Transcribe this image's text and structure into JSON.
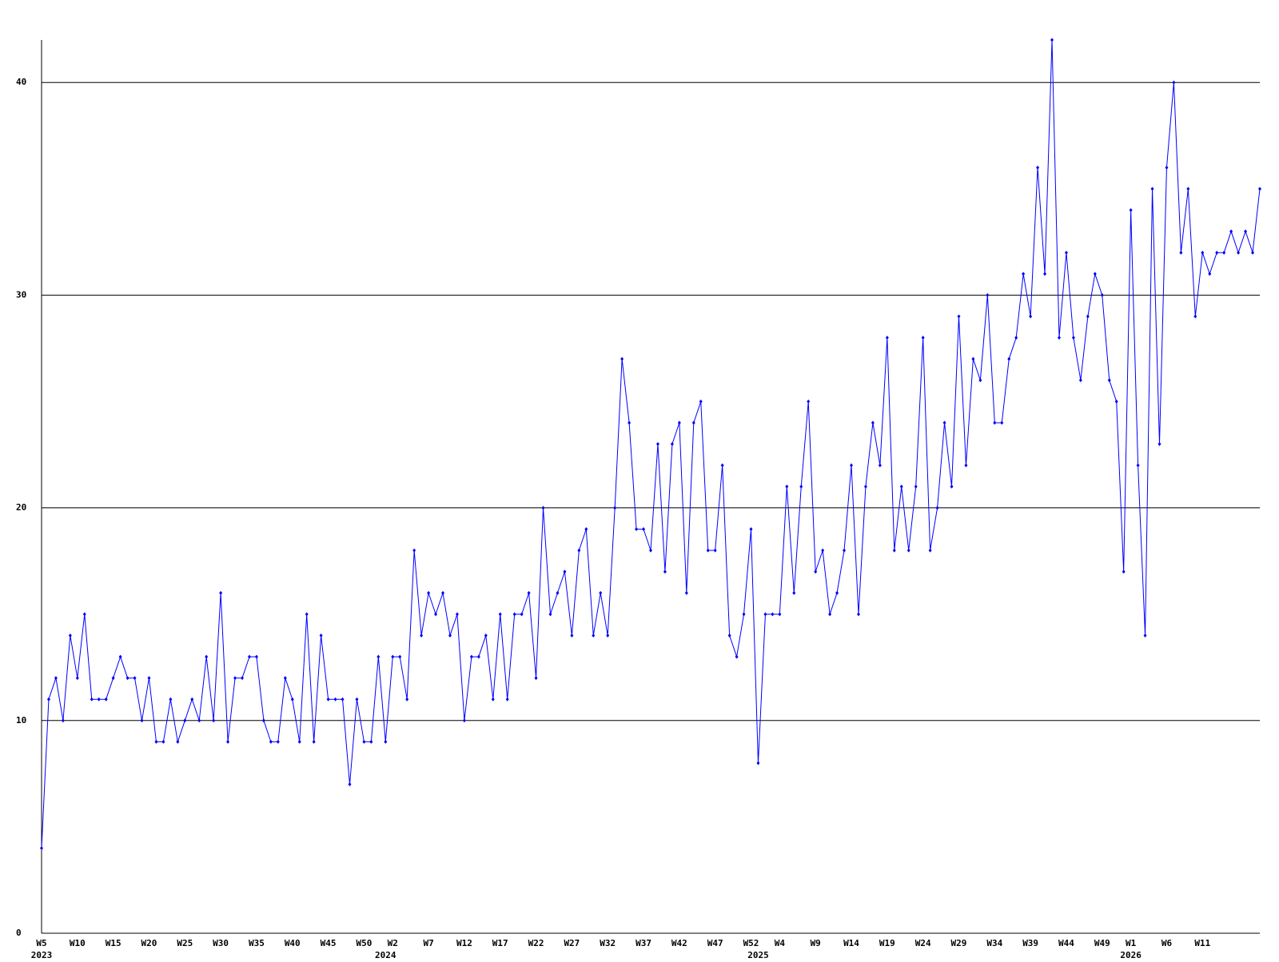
{
  "chart_data": {
    "type": "line",
    "color": "#0000ff",
    "grid": true,
    "ylim": [
      0,
      42
    ],
    "yticks": [
      0,
      10,
      20,
      30,
      40
    ],
    "categories": [
      "W5",
      null,
      null,
      null,
      null,
      "W10",
      null,
      null,
      null,
      null,
      "W15",
      null,
      null,
      null,
      null,
      "W20",
      null,
      null,
      null,
      null,
      "W25",
      null,
      null,
      null,
      null,
      "W30",
      null,
      null,
      null,
      null,
      "W35",
      null,
      null,
      null,
      null,
      "W40",
      null,
      null,
      null,
      null,
      "W45",
      null,
      null,
      null,
      null,
      "W50",
      null,
      null,
      null,
      "W2",
      null,
      null,
      null,
      null,
      "W7",
      null,
      null,
      null,
      null,
      "W12",
      null,
      null,
      null,
      null,
      "W17",
      null,
      null,
      null,
      null,
      "W22",
      null,
      null,
      null,
      null,
      "W27",
      null,
      null,
      null,
      null,
      "W32",
      null,
      null,
      null,
      null,
      "W37",
      null,
      null,
      null,
      null,
      "W42",
      null,
      null,
      null,
      null,
      "W47",
      null,
      null,
      null,
      null,
      "W52",
      null,
      null,
      null,
      "W4",
      null,
      null,
      null,
      null,
      "W9",
      null,
      null,
      null,
      null,
      "W14",
      null,
      null,
      null,
      null,
      "W19",
      null,
      null,
      null,
      null,
      "W24",
      null,
      null,
      null,
      null,
      "W29",
      null,
      null,
      null,
      null,
      "W34",
      null,
      null,
      null,
      null,
      "W39",
      null,
      null,
      null,
      null,
      "W44",
      null,
      null,
      null,
      null,
      "W49",
      null,
      null,
      null,
      "W1",
      null,
      null,
      null,
      null,
      "W6",
      null,
      null,
      null,
      null,
      "W11",
      null,
      null,
      null,
      null,
      null,
      null,
      null,
      null
    ],
    "category_years": [
      "2023",
      null,
      null,
      null,
      null,
      null,
      null,
      null,
      null,
      null,
      null,
      null,
      null,
      null,
      null,
      null,
      null,
      null,
      null,
      null,
      null,
      null,
      null,
      null,
      null,
      null,
      null,
      null,
      null,
      null,
      null,
      null,
      null,
      null,
      null,
      null,
      null,
      null,
      null,
      null,
      null,
      null,
      null,
      null,
      null,
      null,
      null,
      null,
      "2024",
      null,
      null,
      null,
      null,
      null,
      null,
      null,
      null,
      null,
      null,
      null,
      null,
      null,
      null,
      null,
      null,
      null,
      null,
      null,
      null,
      null,
      null,
      null,
      null,
      null,
      null,
      null,
      null,
      null,
      null,
      null,
      null,
      null,
      null,
      null,
      null,
      null,
      null,
      null,
      null,
      null,
      null,
      null,
      null,
      null,
      null,
      null,
      null,
      null,
      null,
      null,
      "2025",
      null,
      null,
      null,
      null,
      null,
      null,
      null,
      null,
      null,
      null,
      null,
      null,
      null,
      null,
      null,
      null,
      null,
      null,
      null,
      null,
      null,
      null,
      null,
      null,
      null,
      null,
      null,
      null,
      null,
      null,
      null,
      null,
      null,
      null,
      null,
      null,
      null,
      null,
      null,
      null,
      null,
      null,
      null,
      null,
      null,
      null,
      null,
      null,
      null,
      null,
      null,
      "2026",
      null,
      null,
      null,
      null,
      null,
      null,
      null,
      null,
      null,
      null,
      null,
      null,
      null,
      null,
      null,
      null,
      null,
      null
    ],
    "values": [
      4,
      11,
      12,
      10,
      14,
      12,
      15,
      11,
      11,
      11,
      12,
      13,
      12,
      12,
      10,
      12,
      9,
      9,
      11,
      9,
      10,
      11,
      10,
      13,
      10,
      16,
      9,
      12,
      12,
      13,
      13,
      10,
      9,
      9,
      12,
      11,
      9,
      15,
      9,
      14,
      11,
      11,
      11,
      7,
      11,
      9,
      9,
      13,
      9,
      13,
      13,
      11,
      18,
      14,
      16,
      15,
      16,
      14,
      15,
      10,
      13,
      13,
      14,
      11,
      15,
      11,
      15,
      15,
      16,
      12,
      20,
      15,
      16,
      17,
      14,
      18,
      19,
      14,
      16,
      14,
      20,
      27,
      24,
      19,
      19,
      18,
      23,
      17,
      23,
      24,
      16,
      24,
      25,
      18,
      18,
      22,
      14,
      13,
      15,
      19,
      8,
      15,
      15,
      15,
      21,
      16,
      21,
      25,
      17,
      18,
      15,
      16,
      18,
      22,
      15,
      21,
      24,
      22,
      28,
      18,
      21,
      18,
      21,
      28,
      18,
      20,
      24,
      21,
      29,
      22,
      27,
      26,
      30,
      24,
      24,
      27,
      28,
      31,
      29,
      36,
      31,
      42,
      28,
      32,
      28,
      26,
      29,
      31,
      30,
      26,
      25,
      17,
      34,
      22,
      14,
      35,
      23,
      36,
      40,
      32,
      35,
      29,
      32,
      31,
      32,
      32,
      33,
      32,
      33,
      32,
      35
    ]
  }
}
